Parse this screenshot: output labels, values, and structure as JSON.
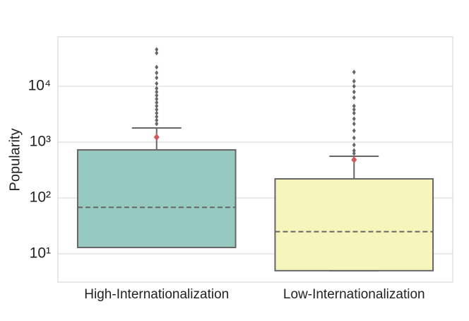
{
  "chart_data": {
    "type": "box",
    "ylabel": "Popularity",
    "log_scale": true,
    "grid": true,
    "ylim": [
      3.12,
      76900
    ],
    "yticks": [
      {
        "value": 10,
        "label": "10¹"
      },
      {
        "value": 100,
        "label": "10²"
      },
      {
        "value": 1000,
        "label": "10³"
      },
      {
        "value": 10000,
        "label": "10⁴"
      }
    ],
    "categories": [
      "High-Internationalization",
      "Low-Internationalization"
    ],
    "box_line_color": "#666666",
    "mean_color": "#d05a5a",
    "boxes": [
      {
        "color": "#96cac1",
        "whisker_low": 13,
        "q1": 13,
        "median": 68,
        "q3": 727,
        "whisker_high": 1790,
        "mean": 1227,
        "outliers": [
          45500,
          39300,
          22000,
          17400,
          14200,
          11200,
          9160,
          7920,
          6840,
          5910,
          5110,
          4420,
          3820,
          3300,
          2860,
          2470,
          2130
        ]
      },
      {
        "color": "#f6f6bc",
        "whisker_low": 5,
        "q1": 5,
        "median": 25,
        "q3": 220,
        "whisker_high": 559,
        "mean": 483,
        "outliers": [
          17900,
          12300,
          10000,
          7920,
          6270,
          4420,
          3820,
          3300,
          2620,
          2130,
          1600,
          1190,
          889,
          705,
          627
        ]
      }
    ]
  }
}
